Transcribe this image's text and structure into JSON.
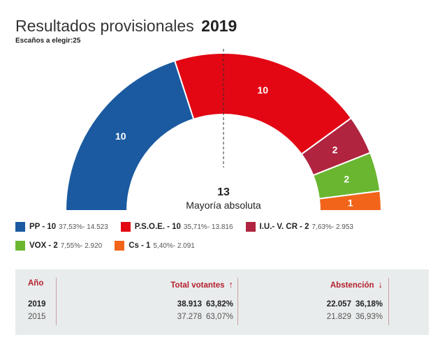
{
  "header": {
    "title": "Resultados provisionales",
    "year": "2019",
    "seats_label": "Escaños a elegir:",
    "seats_value": "25"
  },
  "chart_data": {
    "type": "pie",
    "subtype": "hemicycle",
    "title": "Resultados provisionales 2019",
    "total_seats": 25,
    "majority": 13,
    "majority_label": "Mayoría absoluta",
    "series": [
      {
        "name": "PP",
        "seats": 10,
        "percent": "37,53%",
        "votes": "14.523",
        "color": "#1b5aa0"
      },
      {
        "name": "P.S.O.E.",
        "seats": 10,
        "percent": "35,71%",
        "votes": "13.816",
        "color": "#e30613"
      },
      {
        "name": "I.U.- V. CR",
        "seats": 2,
        "percent": "7,63%",
        "votes": "2.953",
        "color": "#b0243f"
      },
      {
        "name": "VOX",
        "seats": 2,
        "percent": "7,55%",
        "votes": "2.920",
        "color": "#6ab631"
      },
      {
        "name": "Cs",
        "seats": 1,
        "percent": "5,40%",
        "votes": "2.091",
        "color": "#f26419"
      }
    ]
  },
  "table": {
    "col_year": "Año",
    "col_total": "Total votantes",
    "col_abst": "Abstención",
    "up_arrow": "↑",
    "down_arrow": "↓",
    "rows": [
      {
        "year": "2019",
        "total": "38.913",
        "total_pct": "63,82%",
        "abst": "22.057",
        "abst_pct": "36,18%"
      },
      {
        "year": "2015",
        "total": "37.278",
        "total_pct": "63,07%",
        "abst": "21.829",
        "abst_pct": "36,93%"
      }
    ]
  }
}
